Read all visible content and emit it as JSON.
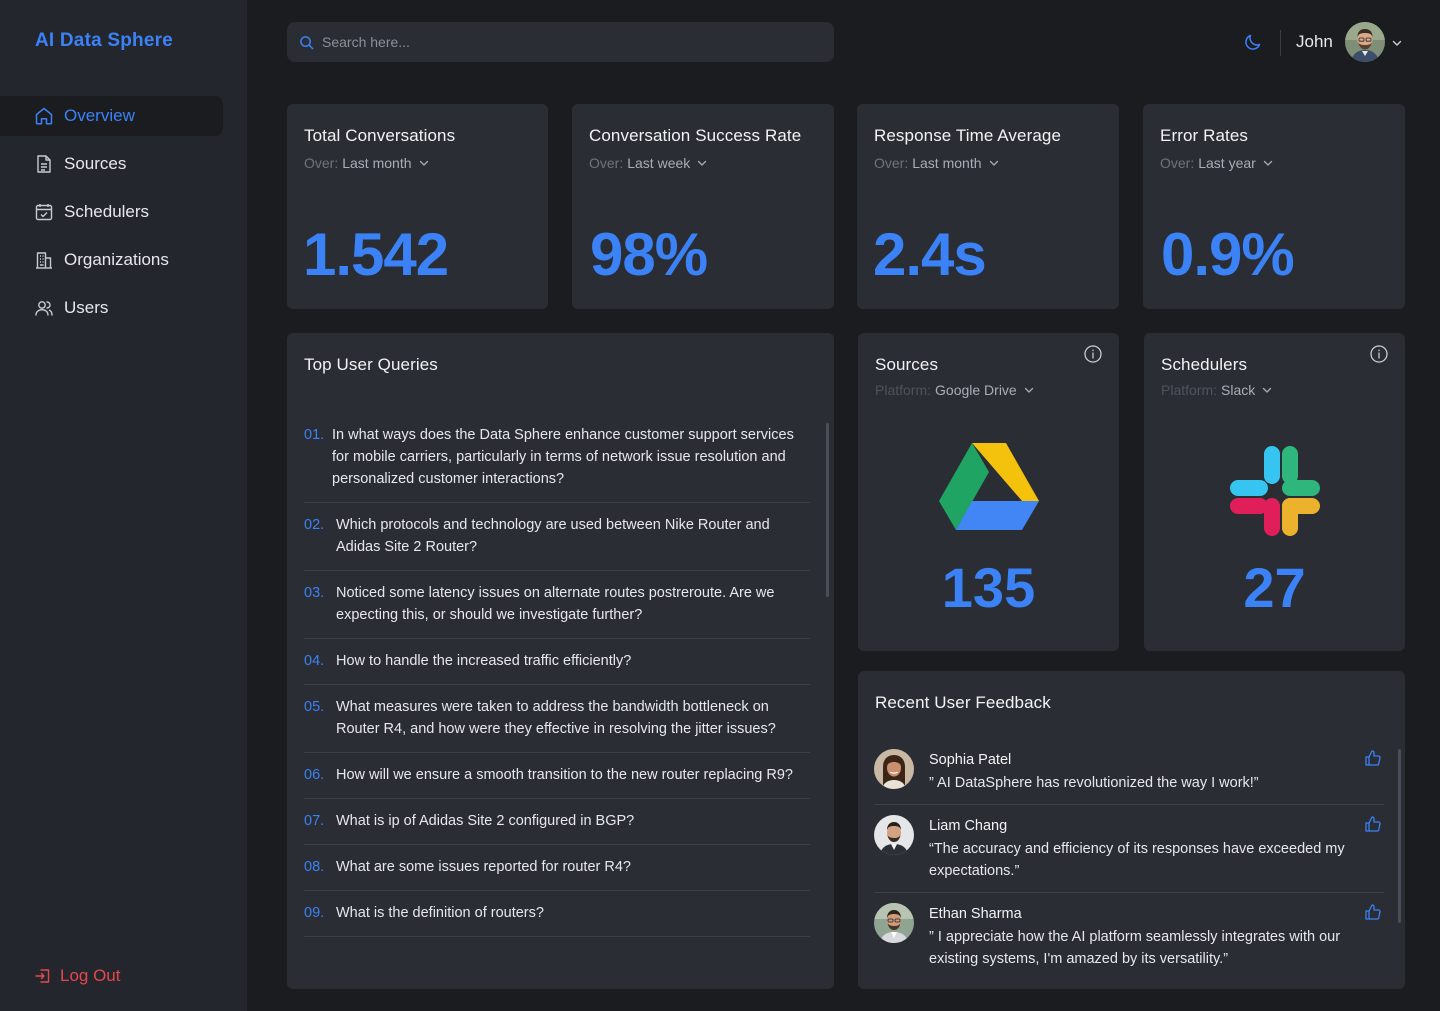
{
  "brand": "AI Data Sphere",
  "nav": [
    {
      "label": "Overview",
      "icon": "home-icon"
    },
    {
      "label": "Sources",
      "icon": "document-icon"
    },
    {
      "label": "Schedulers",
      "icon": "calendar-check-icon"
    },
    {
      "label": "Organizations",
      "icon": "building-icon"
    },
    {
      "label": "Users",
      "icon": "users-icon"
    }
  ],
  "logout_label": "Log Out",
  "search": {
    "placeholder": "Search here..."
  },
  "user": {
    "name": "John"
  },
  "stats": [
    {
      "title": "Total Conversations",
      "over_label": "Over:",
      "period": "Last month",
      "value": "1.542"
    },
    {
      "title": "Conversation Success Rate",
      "over_label": "Over:",
      "period": "Last week",
      "value": "98%"
    },
    {
      "title": "Response Time Average",
      "over_label": "Over:",
      "period": "Last month",
      "value": "2.4s"
    },
    {
      "title": "Error Rates",
      "over_label": "Over:",
      "period": "Last year",
      "value": "0.9%"
    }
  ],
  "queries": {
    "title": "Top User Queries",
    "items": [
      {
        "num": "01.",
        "text": "In what ways does the Data Sphere enhance customer support services for mobile carriers, particularly in terms of network issue resolution and personalized customer interactions?"
      },
      {
        "num": "02.",
        "text": "Which protocols and technology are used between Nike Router and Adidas Site 2 Router?"
      },
      {
        "num": "03.",
        "text": "Noticed some latency issues on alternate routes postreroute. Are we expecting this, or should we investigate further?"
      },
      {
        "num": "04.",
        "text": "How to handle the increased traffic efficiently?"
      },
      {
        "num": "05.",
        "text": "What measures were taken to address the bandwidth bottleneck on Router R4, and how were they effective in resolving the jitter issues?"
      },
      {
        "num": "06.",
        "text": "How will we ensure a smooth transition to the new router replacing R9?"
      },
      {
        "num": "07.",
        "text": "What is ip of Adidas Site 2 configured in BGP?"
      },
      {
        "num": "08.",
        "text": "What are some issues reported for router R4?"
      },
      {
        "num": "09.",
        "text": "What is the definition of routers?"
      }
    ]
  },
  "sources": {
    "title": "Sources",
    "platform_label": "Platform:",
    "platform": "Google Drive",
    "count": "135"
  },
  "schedulers": {
    "title": "Schedulers",
    "platform_label": "Platform:",
    "platform": "Slack",
    "count": "27"
  },
  "feedback": {
    "title": "Recent User Feedback",
    "items": [
      {
        "name": "Sophia Patel",
        "text": "” AI DataSphere has revolutionized the way I work!”"
      },
      {
        "name": "Liam Chang",
        "text": "“The accuracy and efficiency of its responses have exceeded my expectations.”"
      },
      {
        "name": "Ethan Sharma",
        "text": "” I appreciate how the AI platform seamlessly integrates with our existing systems, I'm amazed by its versatility.”"
      }
    ]
  },
  "colors": {
    "accent": "#3b82f6",
    "danger": "#e5484d",
    "card": "#2a2d33",
    "sidebar": "#23262c",
    "background": "#1a1c20"
  }
}
